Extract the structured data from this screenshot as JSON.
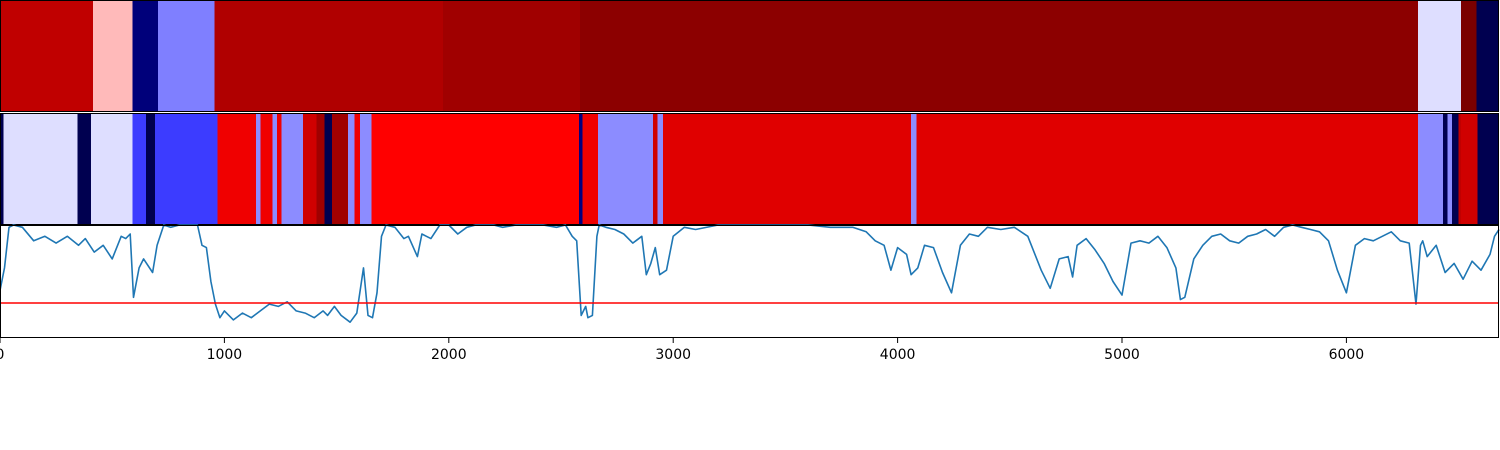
{
  "chart_data": [
    {
      "type": "heatmap",
      "xlim": [
        0,
        6680
      ],
      "segments": [
        {
          "x0": 0,
          "x1": 415,
          "color": "#c00000"
        },
        {
          "x0": 415,
          "x1": 590,
          "color": "#ffbaba"
        },
        {
          "x0": 590,
          "x1": 705,
          "color": "#00007a"
        },
        {
          "x0": 705,
          "x1": 955,
          "color": "#7f7fff"
        },
        {
          "x0": 955,
          "x1": 1975,
          "color": "#b00000"
        },
        {
          "x0": 1975,
          "x1": 2585,
          "color": "#a00000"
        },
        {
          "x0": 2585,
          "x1": 6320,
          "color": "#8c0000"
        },
        {
          "x0": 6320,
          "x1": 6510,
          "color": "#dedeff"
        },
        {
          "x0": 6510,
          "x1": 6580,
          "color": "#7a0000"
        },
        {
          "x0": 6580,
          "x1": 6680,
          "color": "#000050"
        }
      ]
    },
    {
      "type": "heatmap",
      "xlim": [
        0,
        6680
      ],
      "segments": [
        {
          "x0": 0,
          "x1": 15,
          "color": "#000050"
        },
        {
          "x0": 15,
          "x1": 345,
          "color": "#dedeff"
        },
        {
          "x0": 345,
          "x1": 405,
          "color": "#000050"
        },
        {
          "x0": 405,
          "x1": 590,
          "color": "#dedeff"
        },
        {
          "x0": 590,
          "x1": 650,
          "color": "#3c3cff"
        },
        {
          "x0": 650,
          "x1": 690,
          "color": "#000050"
        },
        {
          "x0": 690,
          "x1": 970,
          "color": "#3c3cff"
        },
        {
          "x0": 970,
          "x1": 1140,
          "color": "#f00000"
        },
        {
          "x0": 1140,
          "x1": 1160,
          "color": "#8c8cff"
        },
        {
          "x0": 1160,
          "x1": 1215,
          "color": "#f00000"
        },
        {
          "x0": 1215,
          "x1": 1235,
          "color": "#8c8cff"
        },
        {
          "x0": 1235,
          "x1": 1255,
          "color": "#f00000"
        },
        {
          "x0": 1255,
          "x1": 1350,
          "color": "#8c8cff"
        },
        {
          "x0": 1350,
          "x1": 1410,
          "color": "#d00000"
        },
        {
          "x0": 1410,
          "x1": 1445,
          "color": "#a00000"
        },
        {
          "x0": 1445,
          "x1": 1480,
          "color": "#000050"
        },
        {
          "x0": 1480,
          "x1": 1550,
          "color": "#a00000"
        },
        {
          "x0": 1550,
          "x1": 1580,
          "color": "#8c8cff"
        },
        {
          "x0": 1580,
          "x1": 1605,
          "color": "#f00000"
        },
        {
          "x0": 1605,
          "x1": 1655,
          "color": "#8c8cff"
        },
        {
          "x0": 1655,
          "x1": 2580,
          "color": "#ff0000"
        },
        {
          "x0": 2580,
          "x1": 2595,
          "color": "#000080"
        },
        {
          "x0": 2595,
          "x1": 2665,
          "color": "#f00000"
        },
        {
          "x0": 2665,
          "x1": 2910,
          "color": "#8c8cff"
        },
        {
          "x0": 2910,
          "x1": 2930,
          "color": "#d00000"
        },
        {
          "x0": 2930,
          "x1": 2955,
          "color": "#8c8cff"
        },
        {
          "x0": 2955,
          "x1": 4060,
          "color": "#e00000"
        },
        {
          "x0": 4060,
          "x1": 4085,
          "color": "#8c8cff"
        },
        {
          "x0": 4085,
          "x1": 6320,
          "color": "#e00000"
        },
        {
          "x0": 6320,
          "x1": 6430,
          "color": "#8c8cff"
        },
        {
          "x0": 6430,
          "x1": 6450,
          "color": "#000050"
        },
        {
          "x0": 6450,
          "x1": 6470,
          "color": "#8c8cff"
        },
        {
          "x0": 6470,
          "x1": 6500,
          "color": "#000050"
        },
        {
          "x0": 6500,
          "x1": 6510,
          "color": "#c00000"
        },
        {
          "x0": 6510,
          "x1": 6585,
          "color": "#d00000"
        },
        {
          "x0": 6585,
          "x1": 6680,
          "color": "#000050"
        }
      ]
    },
    {
      "type": "line",
      "xlim": [
        0,
        6680
      ],
      "ylim": [
        0,
        1
      ],
      "x_ticks": [
        0,
        1000,
        2000,
        3000,
        4000,
        5000,
        6000
      ],
      "x_tick_labels": [
        "0",
        "1000",
        "2000",
        "3000",
        "4000",
        "5000",
        "6000"
      ],
      "threshold": {
        "y": 0.31,
        "color": "#ff0000"
      },
      "series": [
        {
          "color": "#1f77b4",
          "x": [
            0,
            20,
            40,
            60,
            100,
            150,
            200,
            250,
            300,
            350,
            380,
            420,
            460,
            500,
            540,
            560,
            580,
            595,
            620,
            640,
            680,
            700,
            730,
            760,
            800,
            840,
            880,
            900,
            920,
            940,
            960,
            980,
            1000,
            1040,
            1080,
            1120,
            1160,
            1200,
            1240,
            1280,
            1320,
            1360,
            1400,
            1440,
            1460,
            1490,
            1520,
            1560,
            1590,
            1620,
            1640,
            1660,
            1680,
            1700,
            1720,
            1760,
            1800,
            1820,
            1860,
            1880,
            1900,
            1920,
            1960,
            2000,
            2040,
            2080,
            2120,
            2160,
            2200,
            2240,
            2300,
            2360,
            2420,
            2480,
            2520,
            2550,
            2570,
            2590,
            2610,
            2620,
            2640,
            2660,
            2670,
            2700,
            2740,
            2780,
            2820,
            2860,
            2880,
            2900,
            2920,
            2940,
            2970,
            3000,
            3050,
            3100,
            3200,
            3300,
            3400,
            3500,
            3600,
            3700,
            3800,
            3860,
            3900,
            3940,
            3970,
            4000,
            4040,
            4060,
            4090,
            4120,
            4160,
            4200,
            4240,
            4280,
            4320,
            4360,
            4400,
            4460,
            4520,
            4580,
            4640,
            4680,
            4720,
            4760,
            4780,
            4800,
            4840,
            4880,
            4920,
            4960,
            5000,
            5040,
            5080,
            5120,
            5160,
            5200,
            5240,
            5260,
            5280,
            5320,
            5360,
            5400,
            5440,
            5480,
            5520,
            5560,
            5600,
            5640,
            5680,
            5720,
            5760,
            5800,
            5840,
            5880,
            5920,
            5960,
            6000,
            6040,
            6080,
            6120,
            6160,
            6200,
            6240,
            6280,
            6310,
            6330,
            6340,
            6360,
            6400,
            6440,
            6480,
            6520,
            6560,
            6600,
            6640,
            6660,
            6680
          ],
          "y": [
            0.42,
            0.62,
            0.98,
            1.0,
            0.98,
            0.86,
            0.9,
            0.84,
            0.9,
            0.82,
            0.88,
            0.76,
            0.82,
            0.7,
            0.9,
            0.88,
            0.92,
            0.36,
            0.62,
            0.7,
            0.58,
            0.82,
            1.0,
            0.98,
            1.0,
            1.0,
            1.0,
            0.82,
            0.8,
            0.5,
            0.3,
            0.18,
            0.24,
            0.16,
            0.22,
            0.18,
            0.24,
            0.3,
            0.28,
            0.32,
            0.24,
            0.22,
            0.18,
            0.24,
            0.2,
            0.28,
            0.2,
            0.14,
            0.22,
            0.62,
            0.2,
            0.18,
            0.4,
            0.9,
            1.0,
            0.98,
            0.88,
            0.9,
            0.72,
            0.92,
            0.9,
            0.88,
            1.0,
            1.0,
            0.92,
            0.98,
            1.0,
            1.0,
            1.0,
            0.98,
            1.0,
            1.0,
            1.0,
            0.98,
            1.0,
            0.9,
            0.86,
            0.2,
            0.28,
            0.18,
            0.2,
            0.9,
            1.0,
            0.98,
            0.96,
            0.92,
            0.84,
            0.9,
            0.56,
            0.66,
            0.8,
            0.56,
            0.6,
            0.9,
            0.98,
            0.96,
            1.0,
            1.0,
            1.0,
            1.0,
            1.0,
            0.98,
            0.98,
            0.94,
            0.86,
            0.82,
            0.6,
            0.8,
            0.74,
            0.56,
            0.62,
            0.82,
            0.8,
            0.58,
            0.4,
            0.82,
            0.92,
            0.9,
            0.98,
            0.96,
            0.98,
            0.9,
            0.6,
            0.44,
            0.7,
            0.72,
            0.54,
            0.82,
            0.88,
            0.78,
            0.66,
            0.5,
            0.38,
            0.84,
            0.86,
            0.84,
            0.9,
            0.8,
            0.62,
            0.34,
            0.36,
            0.7,
            0.82,
            0.9,
            0.92,
            0.86,
            0.84,
            0.9,
            0.92,
            0.96,
            0.9,
            0.98,
            1.0,
            0.98,
            0.96,
            0.94,
            0.86,
            0.6,
            0.4,
            0.82,
            0.88,
            0.86,
            0.9,
            0.94,
            0.86,
            0.84,
            0.3,
            0.82,
            0.86,
            0.72,
            0.82,
            0.58,
            0.66,
            0.52,
            0.68,
            0.6,
            0.74,
            0.9,
            0.96
          ]
        }
      ]
    }
  ]
}
